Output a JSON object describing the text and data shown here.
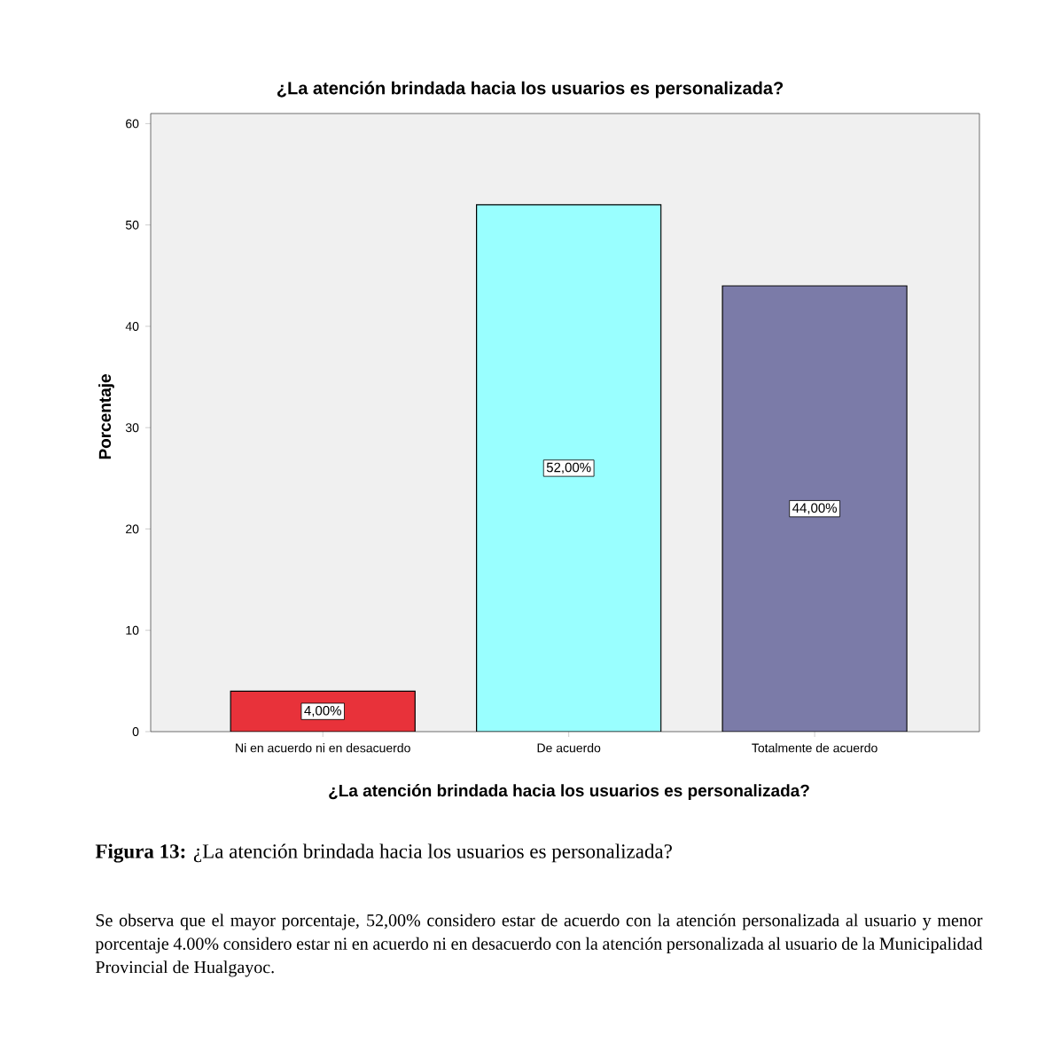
{
  "chart_data": {
    "type": "bar",
    "title": "¿La atención brindada hacia los usuarios es personalizada?",
    "xlabel": "¿La atención brindada hacia los usuarios es personalizada?",
    "ylabel": "Porcentaje",
    "categories": [
      "Ni en acuerdo ni en desacuerdo",
      "De acuerdo",
      "Totalmente de acuerdo"
    ],
    "values": [
      4,
      52,
      44
    ],
    "colors": [
      "#e8323a",
      "#99ffff",
      "#7b7ba8"
    ],
    "value_labels": [
      "4,00%",
      "52,00%",
      "44,00%"
    ],
    "ylim": [
      0,
      61
    ],
    "yticks": [
      0,
      10,
      20,
      30,
      40,
      50,
      60
    ],
    "annotations": [
      "**Figura 13:** ¿La atención brindada hacia los usuarios es personalizada?",
      "Se observa que el mayor porcentaje, 52,00% considero estar de acuerdo con la atención personalizada al usuario y menor porcentaje 4.00% considero estar ni en acuerdo ni en desacuerdo con la atención personalizada al usuario de la Municipalidad Provincial de Hualgayoc."
    ]
  }
}
